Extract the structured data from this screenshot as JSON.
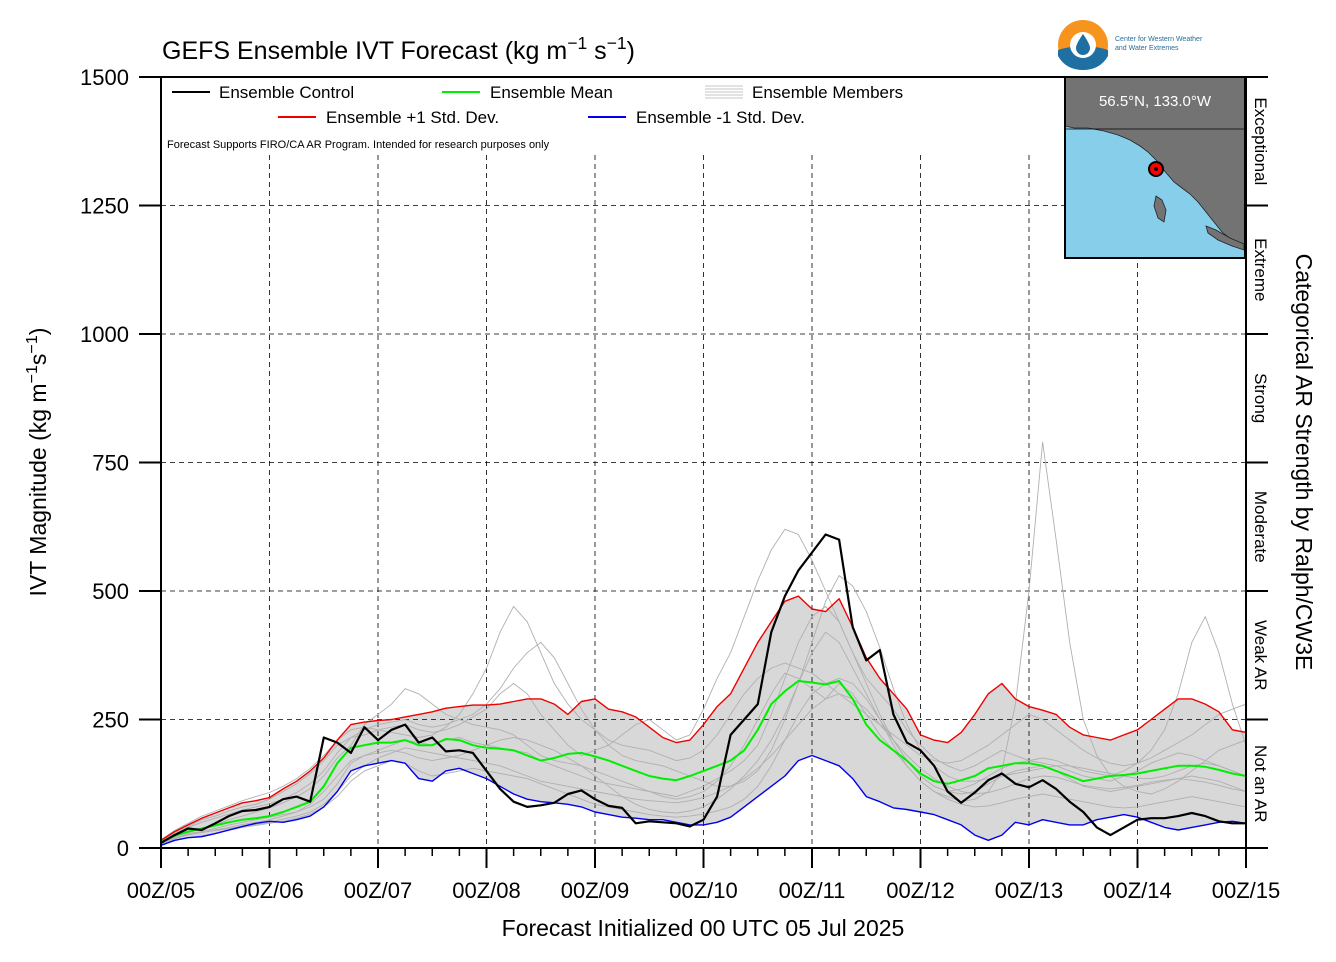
{
  "colors": {
    "control": "#000000",
    "mean": "#00ee00",
    "plus_std": "#ee0000",
    "minus_std": "#0000ee",
    "members": "#b0b0b0",
    "spread_fill": "#d8d8d8",
    "map_ocean": "#87ceeb",
    "map_land": "#737373",
    "marker": "#ff0000",
    "logo_orange": "#f7941d",
    "logo_blue": "#1f6fa3"
  },
  "logo": {
    "icon": "water-drop-icon",
    "line1": "Center for Western Weather",
    "line2": "and Water Extremes"
  },
  "inset_map": {
    "location_label": "56.5°N, 133.0°W"
  },
  "note": "Forecast Supports FIRO/CA AR Program. Intended for research purposes only",
  "chart_data": {
    "type": "line",
    "title": "GEFS Ensemble IVT Forecast (kg m$^{-1}$ s$^{-1}$)",
    "xlabel": "Forecast Initialized 00 UTC 05 Jul 2025",
    "ylabel": "IVT Magnitude (kg m$^{-1}$s$^{-1}$)",
    "right_label": "Categorical AR Strength by Ralph/CW3E",
    "xlim": [
      0,
      240
    ],
    "ylim": [
      0,
      1500
    ],
    "grid": true,
    "legend_position": "top-left",
    "x_ticks": [
      {
        "value": 0,
        "label": "00Z/05"
      },
      {
        "value": 24,
        "label": "00Z/06"
      },
      {
        "value": 48,
        "label": "00Z/07"
      },
      {
        "value": 72,
        "label": "00Z/08"
      },
      {
        "value": 96,
        "label": "00Z/09"
      },
      {
        "value": 120,
        "label": "00Z/10"
      },
      {
        "value": 144,
        "label": "00Z/11"
      },
      {
        "value": 168,
        "label": "00Z/12"
      },
      {
        "value": 192,
        "label": "00Z/13"
      },
      {
        "value": 216,
        "label": "00Z/14"
      },
      {
        "value": 240,
        "label": "00Z/15"
      }
    ],
    "y_ticks": [
      {
        "value": 0,
        "label": "0"
      },
      {
        "value": 250,
        "label": "250"
      },
      {
        "value": 500,
        "label": "500"
      },
      {
        "value": 750,
        "label": "750"
      },
      {
        "value": 1000,
        "label": "1000"
      },
      {
        "value": 1250,
        "label": "1250"
      },
      {
        "value": 1500,
        "label": "1500"
      }
    ],
    "categories": [
      {
        "label": "Not an AR",
        "from": 0,
        "to": 250
      },
      {
        "label": "Weak AR",
        "from": 250,
        "to": 500
      },
      {
        "label": "Moderate",
        "from": 500,
        "to": 750
      },
      {
        "label": "Strong",
        "from": 750,
        "to": 1000
      },
      {
        "label": "Extreme",
        "from": 1000,
        "to": 1250
      },
      {
        "label": "Exceptional",
        "from": 1250,
        "to": 1500
      }
    ],
    "x": [
      0,
      3,
      6,
      9,
      12,
      15,
      18,
      21,
      24,
      27,
      30,
      33,
      36,
      39,
      42,
      45,
      48,
      51,
      54,
      57,
      60,
      63,
      66,
      69,
      72,
      75,
      78,
      81,
      84,
      87,
      90,
      93,
      96,
      99,
      102,
      105,
      108,
      111,
      114,
      117,
      120,
      123,
      126,
      129,
      132,
      135,
      138,
      141,
      144,
      147,
      150,
      153,
      156,
      159,
      162,
      165,
      168,
      171,
      174,
      177,
      180,
      183,
      186,
      189,
      192,
      195,
      198,
      201,
      204,
      207,
      210,
      213,
      216,
      219,
      222,
      225,
      228,
      231,
      234,
      237,
      240
    ],
    "series": [
      {
        "name": "Ensemble Control",
        "values": [
          10,
          25,
          38,
          35,
          48,
          62,
          72,
          74,
          80,
          95,
          100,
          90,
          215,
          205,
          185,
          235,
          210,
          230,
          240,
          205,
          215,
          188,
          190,
          185,
          150,
          115,
          90,
          80,
          83,
          88,
          105,
          112,
          95,
          82,
          78,
          48,
          52,
          50,
          48,
          42,
          55,
          100,
          220,
          250,
          280,
          420,
          490,
          540,
          575,
          610,
          600,
          430,
          365,
          385,
          260,
          205,
          190,
          160,
          110,
          88,
          108,
          132,
          145,
          125,
          118,
          132,
          115,
          90,
          70,
          40,
          25,
          40,
          55,
          58,
          58,
          62,
          68,
          62,
          52,
          48,
          48
        ]
      },
      {
        "name": "Ensemble Mean",
        "values": [
          12,
          24,
          32,
          38,
          44,
          50,
          55,
          58,
          62,
          70,
          80,
          90,
          120,
          165,
          195,
          200,
          205,
          205,
          210,
          200,
          200,
          212,
          210,
          200,
          195,
          193,
          190,
          180,
          170,
          175,
          183,
          185,
          178,
          170,
          160,
          150,
          140,
          135,
          132,
          140,
          150,
          160,
          170,
          190,
          230,
          280,
          305,
          325,
          322,
          318,
          325,
          290,
          240,
          210,
          190,
          170,
          145,
          130,
          125,
          132,
          140,
          155,
          160,
          165,
          165,
          160,
          150,
          140,
          130,
          135,
          140,
          142,
          145,
          150,
          155,
          160,
          160,
          158,
          152,
          145,
          140
        ]
      },
      {
        "name": "Ensemble +1 Std. Dev.",
        "values": [
          15,
          32,
          45,
          58,
          68,
          78,
          88,
          92,
          98,
          115,
          130,
          150,
          175,
          210,
          240,
          245,
          248,
          250,
          255,
          260,
          265,
          272,
          275,
          278,
          278,
          280,
          285,
          290,
          290,
          280,
          260,
          285,
          290,
          270,
          265,
          255,
          235,
          215,
          205,
          210,
          240,
          275,
          300,
          350,
          400,
          440,
          480,
          490,
          465,
          460,
          485,
          430,
          370,
          330,
          300,
          270,
          220,
          210,
          205,
          225,
          260,
          300,
          320,
          290,
          275,
          268,
          260,
          235,
          220,
          215,
          210,
          220,
          230,
          250,
          270,
          290,
          290,
          280,
          265,
          230,
          225
        ]
      },
      {
        "name": "Ensemble -1 Std. Dev.",
        "values": [
          5,
          15,
          20,
          22,
          28,
          35,
          42,
          48,
          52,
          50,
          55,
          62,
          80,
          110,
          150,
          160,
          165,
          170,
          165,
          135,
          130,
          150,
          155,
          145,
          135,
          120,
          105,
          95,
          90,
          88,
          85,
          80,
          70,
          65,
          60,
          58,
          55,
          55,
          50,
          45,
          45,
          50,
          60,
          80,
          100,
          120,
          140,
          170,
          180,
          170,
          160,
          135,
          100,
          90,
          78,
          75,
          70,
          65,
          55,
          45,
          25,
          15,
          25,
          50,
          45,
          55,
          50,
          45,
          45,
          55,
          60,
          65,
          60,
          50,
          40,
          35,
          40,
          45,
          50,
          52,
          48
        ]
      }
    ],
    "member_series": [
      {
        "values": [
          15,
          30,
          42,
          55,
          62,
          72,
          80,
          85,
          95,
          110,
          125,
          145,
          170,
          200,
          215,
          220,
          230,
          235,
          240,
          230,
          225,
          230,
          240,
          255,
          270,
          300,
          320,
          300,
          260,
          230,
          200,
          180,
          190,
          200,
          220,
          240,
          250,
          230,
          210,
          220,
          270,
          330,
          380,
          450,
          520,
          580,
          620,
          610,
          560,
          500,
          440,
          380,
          330,
          300,
          270,
          230,
          200,
          175,
          160,
          150,
          160,
          175,
          190,
          180,
          170,
          165,
          160,
          150,
          140,
          135,
          130,
          140,
          150,
          165,
          175,
          185,
          180,
          170,
          160,
          150,
          140
        ]
      },
      {
        "values": [
          8,
          18,
          28,
          32,
          38,
          45,
          50,
          55,
          60,
          65,
          70,
          80,
          95,
          125,
          165,
          180,
          190,
          200,
          210,
          205,
          200,
          210,
          215,
          205,
          200,
          195,
          190,
          185,
          170,
          160,
          150,
          140,
          130,
          125,
          120,
          115,
          110,
          105,
          100,
          110,
          120,
          135,
          150,
          170,
          200,
          260,
          330,
          400,
          450,
          470,
          440,
          380,
          320,
          260,
          210,
          170,
          140,
          120,
          110,
          105,
          110,
          125,
          140,
          150,
          155,
          160,
          150,
          135,
          120,
          115,
          110,
          115,
          120,
          125,
          130,
          135,
          140,
          135,
          130,
          120,
          110
        ]
      },
      {
        "values": [
          12,
          22,
          30,
          38,
          45,
          55,
          62,
          70,
          78,
          88,
          100,
          115,
          140,
          175,
          200,
          240,
          260,
          280,
          310,
          300,
          280,
          260,
          250,
          240,
          235,
          230,
          220,
          200,
          180,
          170,
          165,
          160,
          150,
          140,
          130,
          120,
          110,
          100,
          95,
          100,
          110,
          130,
          160,
          200,
          250,
          300,
          340,
          330,
          310,
          290,
          320,
          300,
          260,
          220,
          190,
          160,
          130,
          110,
          100,
          90,
          95,
          110,
          150,
          280,
          500,
          790,
          600,
          400,
          250,
          180,
          140,
          120,
          110,
          105,
          115,
          130,
          150,
          170,
          190,
          200,
          210
        ]
      },
      {
        "values": [
          10,
          20,
          26,
          30,
          35,
          40,
          46,
          50,
          55,
          62,
          70,
          85,
          110,
          140,
          170,
          180,
          185,
          190,
          185,
          175,
          170,
          175,
          180,
          190,
          200,
          210,
          215,
          210,
          200,
          190,
          175,
          160,
          140,
          120,
          100,
          85,
          75,
          70,
          68,
          72,
          80,
          95,
          115,
          140,
          170,
          210,
          260,
          320,
          380,
          420,
          400,
          350,
          300,
          250,
          210,
          170,
          140,
          120,
          110,
          115,
          125,
          140,
          155,
          165,
          170,
          175,
          170,
          160,
          150,
          145,
          140,
          150,
          165,
          190,
          230,
          300,
          400,
          450,
          380,
          280,
          200
        ]
      },
      {
        "values": [
          14,
          28,
          40,
          50,
          58,
          66,
          74,
          80,
          86,
          95,
          108,
          125,
          150,
          185,
          215,
          230,
          240,
          245,
          250,
          240,
          235,
          240,
          250,
          260,
          280,
          310,
          350,
          380,
          400,
          370,
          320,
          270,
          230,
          200,
          180,
          170,
          165,
          160,
          150,
          140,
          130,
          120,
          120,
          130,
          150,
          190,
          250,
          320,
          400,
          480,
          530,
          510,
          460,
          390,
          310,
          240,
          190,
          160,
          140,
          130,
          130,
          135,
          140,
          145,
          150,
          155,
          160,
          160,
          155,
          150,
          145,
          140,
          135,
          135,
          140,
          150,
          160,
          165,
          160,
          150,
          140
        ]
      },
      {
        "values": [
          6,
          14,
          20,
          24,
          28,
          34,
          40,
          44,
          48,
          52,
          58,
          66,
          80,
          100,
          130,
          150,
          160,
          170,
          165,
          150,
          140,
          145,
          150,
          155,
          150,
          145,
          140,
          135,
          125,
          115,
          105,
          95,
          85,
          80,
          75,
          70,
          65,
          62,
          60,
          62,
          66,
          72,
          80,
          95,
          120,
          160,
          210,
          260,
          300,
          320,
          330,
          320,
          290,
          250,
          200,
          160,
          130,
          110,
          95,
          85,
          80,
          82,
          88,
          95,
          100,
          105,
          100,
          95,
          90,
          85,
          80,
          78,
          80,
          85,
          90,
          95,
          100,
          95,
          90,
          85,
          80
        ]
      },
      {
        "values": [
          16,
          34,
          48,
          62,
          72,
          82,
          92,
          100,
          108,
          120,
          135,
          155,
          180,
          210,
          230,
          235,
          230,
          225,
          220,
          215,
          220,
          235,
          260,
          300,
          350,
          420,
          470,
          440,
          380,
          320,
          280,
          250,
          230,
          210,
          200,
          195,
          190,
          180,
          170,
          175,
          190,
          220,
          260,
          300,
          330,
          350,
          360,
          350,
          340,
          320,
          300,
          280,
          260,
          240,
          220,
          200,
          180,
          170,
          165,
          170,
          185,
          200,
          220,
          240,
          260,
          250,
          230,
          210,
          190,
          175,
          165,
          160,
          165,
          175,
          190,
          205,
          220,
          240,
          260,
          270,
          280
        ]
      },
      {
        "values": [
          9,
          18,
          25,
          30,
          34,
          38,
          42,
          46,
          50,
          56,
          62,
          70,
          85,
          110,
          140,
          160,
          175,
          185,
          195,
          190,
          185,
          180,
          175,
          170,
          165,
          160,
          150,
          140,
          130,
          125,
          120,
          115,
          110,
          105,
          100,
          95,
          92,
          90,
          88,
          92,
          98,
          108,
          120,
          135,
          155,
          180,
          210,
          240,
          270,
          290,
          300,
          290,
          270,
          240,
          210,
          180,
          155,
          135,
          120,
          110,
          105,
          108,
          115,
          125,
          135,
          140,
          138,
          130,
          122,
          118,
          115,
          118,
          122,
          128,
          132,
          135,
          132,
          128,
          122,
          115,
          110
        ]
      }
    ]
  }
}
